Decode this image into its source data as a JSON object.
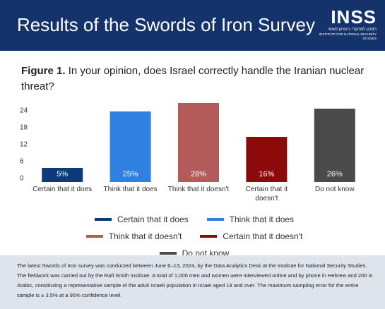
{
  "header": {
    "title": "Results of the Swords of Iron Survey",
    "logo": "INSS",
    "logo_hebrew": "המכון למחקרי ביטחון לאומי",
    "logo_english": "INSTITUTE FOR NATIONAL SECURITY STUDIES"
  },
  "chart_data": {
    "type": "bar",
    "figure_label": "Figure 1.",
    "title": "In your opinion, does Israel correctly handle the Iranian nuclear threat?",
    "categories": [
      "Certain that it does",
      "Think that it does",
      "Think that it doesn't",
      "Certain that it doesn't",
      "Do not know"
    ],
    "values": [
      5,
      25,
      28,
      16,
      26
    ],
    "value_labels": [
      "5%",
      "25%",
      "28%",
      "16%",
      "26%"
    ],
    "colors": [
      "#0d3b7a",
      "#2f80e0",
      "#b35a5a",
      "#8c0a0a",
      "#4a4a4a"
    ],
    "ylim": [
      0,
      30
    ],
    "yticks": [
      0,
      6,
      12,
      18,
      24
    ],
    "grid": false,
    "legend": "bottom"
  },
  "footer": {
    "note": "The latest Swords of Iron survey was conducted between June 6–13, 2024, by the Data Analytics Desk at the Institute for National Security Studies. The fieldwork was carried out by the Rafi Smith Institute. A total of 1,000 men and women were interviewed online and by phone in Hebrew and 200 in Arabic, constituting a representative sample of the adult Israeli population in Israel aged 18 and over. The maximum sampling error for the entire sample is ± 3.5% at a 95% confidence level."
  }
}
